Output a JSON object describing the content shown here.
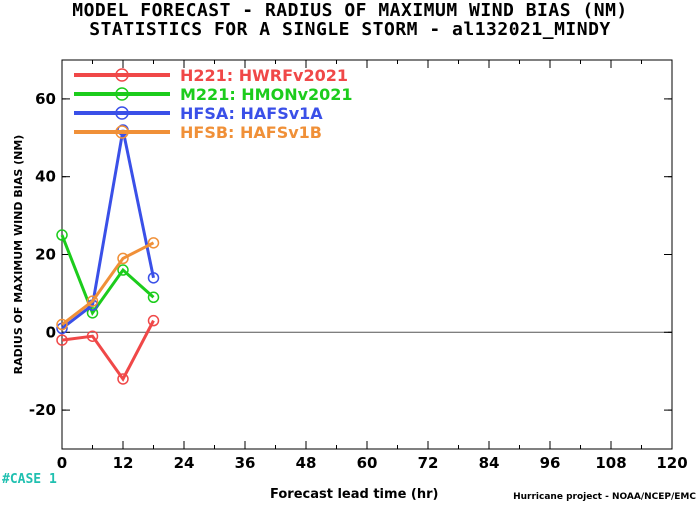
{
  "header": {
    "title_line1": "MODEL FORECAST - RADIUS OF MAXIMUM WIND BIAS (NM)",
    "title_line2": "STATISTICS FOR A SINGLE STORM - al132021_MINDY"
  },
  "footer": {
    "case_label": "#CASE  1",
    "xlabel": "Forecast lead time (hr)",
    "credit": "Hurricane project - NOAA/NCEP/EMC"
  },
  "chart_data": {
    "type": "line",
    "title": "MODEL FORECAST - RADIUS OF MAXIMUM WIND BIAS (NM)",
    "subtitle": "STATISTICS FOR A SINGLE STORM - al132021_MINDY",
    "xlabel": "Forecast lead time (hr)",
    "ylabel": "RADIUS OF MAXIMUM WIND BIAS (NM)",
    "xlim": [
      0,
      120
    ],
    "ylim": [
      -30,
      70
    ],
    "xticks": [
      0,
      12,
      24,
      36,
      48,
      60,
      72,
      84,
      96,
      108,
      120
    ],
    "yticks": [
      -20,
      0,
      20,
      40,
      60
    ],
    "x": [
      0,
      6,
      12,
      18
    ],
    "grid": false,
    "legend_position": "top-left",
    "series": [
      {
        "name": "H221: HWRFv2021",
        "color": "#f04848",
        "values": [
          -2,
          -1,
          -12,
          3
        ]
      },
      {
        "name": "M221: HMONv2021",
        "color": "#1ccc1c",
        "values": [
          25,
          5,
          16,
          9
        ]
      },
      {
        "name": "HFSA: HAFSv1A",
        "color": "#3a50e8",
        "values": [
          1,
          7,
          52,
          14
        ]
      },
      {
        "name": "HFSB: HAFSv1B",
        "color": "#f09038",
        "values": [
          2,
          8,
          19,
          23
        ]
      }
    ]
  }
}
